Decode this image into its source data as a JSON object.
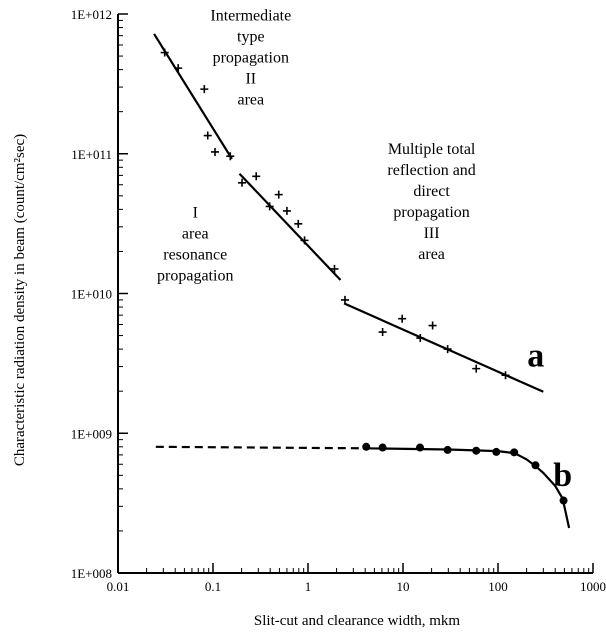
{
  "chart_data": {
    "type": "scatter",
    "xscale": "log",
    "yscale": "log",
    "xlabel": "Slit-cut and clearance width, mkm",
    "ylabel": "Characteristic radiation density in beam (count/cm²sec)",
    "xlim": [
      0.01,
      1000
    ],
    "ylim": [
      100000000.0,
      1000000000000.0
    ],
    "x_ticks": [
      0.01,
      0.1,
      1,
      10,
      100,
      1000
    ],
    "x_tick_labels": [
      "0.01",
      "0.1",
      "1",
      "10",
      "100",
      "1000"
    ],
    "y_ticks": [
      100000000.0,
      1000000000.0,
      10000000000.0,
      100000000000.0,
      1000000000000.0
    ],
    "y_tick_labels": [
      "1E+008",
      "1E+009",
      "1E+010",
      "1E+011",
      "1E+012"
    ],
    "grid": false,
    "annotations": [
      {
        "x": 0.25,
        "y": 900000000000.0,
        "lines": [
          "Intermediate",
          "type",
          "propagation",
          "II",
          "area"
        ]
      },
      {
        "x": 0.065,
        "y": 35000000000.0,
        "lines": [
          "I",
          "area",
          "resonance",
          "propagation"
        ]
      },
      {
        "x": 20,
        "y": 100000000000.0,
        "lines": [
          "Multiple total",
          "reflection and",
          "direct",
          "propagation",
          "III",
          "area"
        ]
      }
    ],
    "series": [
      {
        "name": "a",
        "label_x": 250,
        "label_y": 3000000000.0,
        "marker": "plus",
        "points": [
          [
            0.031,
            530000000000.0
          ],
          [
            0.043,
            410000000000.0
          ],
          [
            0.081,
            290000000000.0
          ],
          [
            0.088,
            135000000000.0
          ],
          [
            0.105,
            103000000000.0
          ],
          [
            0.152,
            96000000000.0
          ],
          [
            0.202,
            62000000000.0
          ],
          [
            0.285,
            69000000000.0
          ],
          [
            0.395,
            42000000000.0
          ],
          [
            0.492,
            51000000000.0
          ],
          [
            0.6,
            39000000000.0
          ],
          [
            0.79,
            31500000000.0
          ],
          [
            0.92,
            24000000000.0
          ],
          [
            1.9,
            15000000000.0
          ],
          [
            2.45,
            9000000000.0
          ],
          [
            6.1,
            5300000000.0
          ],
          [
            9.8,
            6600000000.0
          ],
          [
            15.2,
            4800000000.0
          ],
          [
            20.5,
            5900000000.0
          ],
          [
            29.5,
            4000000000.0
          ],
          [
            59,
            2900000000.0
          ],
          [
            120,
            2600000000.0
          ]
        ],
        "fit_segments": [
          {
            "style": "solid",
            "points": [
              [
                0.024,
                720000000000.0
              ],
              [
                0.158,
                92000000000.0
              ]
            ]
          },
          {
            "style": "solid",
            "points": [
              [
                0.19,
                72000000000.0
              ],
              [
                2.2,
                12500000000.0
              ]
            ]
          },
          {
            "style": "solid",
            "points": [
              [
                2.4,
                8500000000.0
              ],
              [
                300,
                1980000000.0
              ]
            ]
          }
        ]
      },
      {
        "name": "b",
        "label_x": 480,
        "label_y": 420000000.0,
        "marker": "dot",
        "points": [
          [
            4.1,
            800000000.0
          ],
          [
            6.1,
            790000000.0
          ],
          [
            15.1,
            790000000.0
          ],
          [
            29.5,
            760000000.0
          ],
          [
            59,
            750000000.0
          ],
          [
            96,
            735000000.0
          ],
          [
            148,
            730000000.0
          ],
          [
            248,
            590000000.0
          ],
          [
            490,
            330000000.0
          ]
        ],
        "fit_segments": [
          {
            "style": "dashed",
            "points": [
              [
                0.025,
                800000000.0
              ],
              [
                4.0,
                780000000.0
              ]
            ]
          },
          {
            "style": "solid",
            "points": [
              [
                4.0,
                780000000.0
              ],
              [
                30,
                765000000.0
              ],
              [
                100,
                745000000.0
              ],
              [
                150,
                720000000.0
              ],
              [
                200,
                650000000.0
              ],
              [
                250,
                580000000.0
              ],
              [
                300,
                520000000.0
              ],
              [
                400,
                420000000.0
              ],
              [
                480,
                340000000.0
              ],
              [
                560,
                210000000.0
              ]
            ]
          }
        ]
      }
    ]
  }
}
